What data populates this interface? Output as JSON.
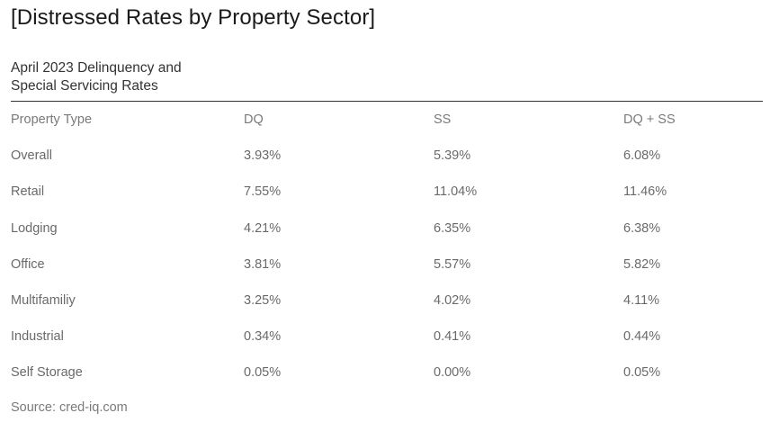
{
  "title": "[Distressed Rates by Property Sector]",
  "subtitle": {
    "line1": "April 2023 Delinquency and",
    "line2": "Special Servicing Rates"
  },
  "table": {
    "headers": [
      "Property Type",
      "DQ",
      "SS",
      "DQ + SS"
    ],
    "rows": [
      [
        "Overall",
        "3.93%",
        "5.39%",
        "6.08%"
      ],
      [
        "Retail",
        "7.55%",
        "11.04%",
        "11.46%"
      ],
      [
        "Lodging",
        "4.21%",
        "6.35%",
        "6.38%"
      ],
      [
        "Office",
        "3.81%",
        "5.57%",
        "5.82%"
      ],
      [
        "Multifamiliy",
        "3.25%",
        "4.02%",
        "4.11%"
      ],
      [
        "Industrial",
        "0.34%",
        "0.41%",
        "0.44%"
      ],
      [
        "Self Storage",
        "0.05%",
        "0.00%",
        "0.05%"
      ]
    ]
  },
  "source": "Source: cred-iq.com"
}
